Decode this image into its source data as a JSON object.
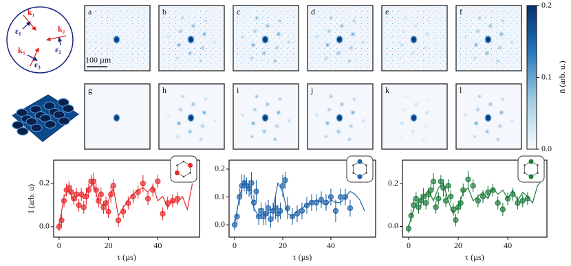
{
  "diagram": {
    "labels": [
      "k₁",
      "ε₁",
      "k₂",
      "ε₂",
      "k₃",
      "ε₃"
    ]
  },
  "panels": {
    "labels": [
      "a",
      "b",
      "c",
      "d",
      "e",
      "f",
      "g",
      "h",
      "i",
      "j",
      "k",
      "l"
    ],
    "scale_bar": "100 µm"
  },
  "colorbar": {
    "label": "n̄ (arb. u.)",
    "lim": [
      0,
      0.2
    ],
    "ticks": [
      {
        "value": 0,
        "label": "0.0"
      },
      0.1,
      0.2
    ]
  },
  "chart_data": [
    {
      "type": "scatter",
      "xlabel": "τ (µs)",
      "ylabel": "I (arb. u)",
      "xlim": [
        -2.2,
        56.9
      ],
      "ylim": [
        -0.048,
        0.308
      ],
      "xticks": [
        0,
        20,
        40
      ],
      "yticks": [
        {
          "value": 0,
          "label": "0.0"
        },
        0.2
      ],
      "series": [
        {
          "type": "line",
          "color": "#e8282b",
          "x": [
            0,
            2,
            4,
            6,
            8,
            10,
            12,
            14,
            16,
            18,
            20,
            22,
            24,
            26,
            28,
            30,
            32,
            34,
            36,
            38,
            40,
            42,
            44,
            46,
            48,
            50,
            52,
            54
          ],
          "values": [
            0,
            0.14,
            0.17,
            0.12,
            0.15,
            0.13,
            0.18,
            0.2,
            0.11,
            0.1,
            0.12,
            0.18,
            0.05,
            0.09,
            0.12,
            0.15,
            0.17,
            0.18,
            0.16,
            0.19,
            0.12,
            0.14,
            0.09,
            0.12,
            0.11,
            0.14,
            0.08,
            0.2
          ]
        },
        {
          "type": "errorbar",
          "color": "#e8282b",
          "x": [
            0,
            1,
            2,
            3,
            4,
            5,
            6,
            7,
            8,
            9,
            10,
            11,
            12,
            13,
            14,
            15,
            16,
            17,
            18,
            19,
            20,
            21,
            22,
            24,
            26,
            28,
            30,
            32,
            34,
            36,
            38,
            40,
            42,
            44,
            46,
            48
          ],
          "values": [
            0,
            0.03,
            0.12,
            0.17,
            0.18,
            0.16,
            0.13,
            0.15,
            0.1,
            0.15,
            0.09,
            0.14,
            0.17,
            0.21,
            0.21,
            0.17,
            0.12,
            0.15,
            0.09,
            0.11,
            0.07,
            0.15,
            0.19,
            0.03,
            0.07,
            0.11,
            0.14,
            0.16,
            0.2,
            0.13,
            0.17,
            0.21,
            0.06,
            0.11,
            0.12,
            0.13
          ],
          "errors": [
            0.02,
            0.03,
            0.03,
            0.03,
            0.03,
            0.03,
            0.03,
            0.03,
            0.03,
            0.03,
            0.03,
            0.04,
            0.03,
            0.03,
            0.04,
            0.03,
            0.03,
            0.03,
            0.03,
            0.03,
            0.03,
            0.04,
            0.03,
            0.03,
            0.03,
            0.03,
            0.03,
            0.03,
            0.04,
            0.03,
            0.03,
            0.03,
            0.03,
            0.03,
            0.03,
            0.03
          ]
        }
      ]
    },
    {
      "type": "scatter",
      "xlabel": "τ (µs)",
      "xlim": [
        -2.3,
        58.6
      ],
      "ylim": [
        -0.044,
        0.232
      ],
      "xticks": [
        0,
        20,
        40
      ],
      "yticks": [
        {
          "value": 0,
          "label": "0.0"
        },
        0.1,
        0.2
      ],
      "series": [
        {
          "type": "line",
          "color": "#1f63a8",
          "x": [
            0,
            2,
            4,
            6,
            8,
            10,
            12,
            14,
            16,
            18,
            20,
            22,
            24,
            26,
            28,
            30,
            32,
            34,
            36,
            38,
            40,
            42,
            44,
            46,
            48,
            50,
            52,
            54
          ],
          "values": [
            0,
            0.1,
            0.16,
            0.14,
            0.06,
            0.03,
            0.04,
            0.04,
            0.06,
            0.15,
            0.12,
            0.04,
            0.03,
            0.05,
            0.06,
            0.07,
            0.08,
            0.09,
            0.08,
            0.07,
            0.09,
            0.08,
            0.08,
            0.1,
            0.12,
            0.11,
            0.09,
            0.05
          ]
        },
        {
          "type": "errorbar",
          "color": "#1f63a8",
          "x": [
            0,
            1,
            2,
            3,
            4,
            5,
            6,
            7,
            8,
            9,
            10,
            11,
            12,
            13,
            14,
            15,
            16,
            17,
            18,
            19,
            20,
            21,
            22,
            24,
            26,
            28,
            30,
            32,
            34,
            36,
            38,
            40,
            42,
            44,
            46,
            48
          ],
          "values": [
            0,
            0.03,
            0.1,
            0.14,
            0.15,
            0.14,
            0.13,
            0.15,
            0.08,
            0.12,
            0.03,
            0.05,
            0.03,
            0.04,
            0.06,
            0.02,
            0.05,
            0.06,
            0.04,
            0.05,
            0.14,
            0.16,
            0.06,
            0.03,
            0.04,
            0.05,
            0.07,
            0.08,
            0.08,
            0.09,
            0.08,
            0.1,
            0.05,
            0.1,
            0.1,
            0.06
          ],
          "errors": [
            0.02,
            0.03,
            0.03,
            0.04,
            0.03,
            0.03,
            0.03,
            0.04,
            0.03,
            0.04,
            0.03,
            0.03,
            0.03,
            0.04,
            0.03,
            0.03,
            0.03,
            0.04,
            0.03,
            0.03,
            0.04,
            0.03,
            0.04,
            0.03,
            0.03,
            0.03,
            0.03,
            0.03,
            0.03,
            0.03,
            0.03,
            0.03,
            0.04,
            0.03,
            0.03,
            0.03
          ]
        }
      ]
    },
    {
      "type": "scatter",
      "xlabel": "τ (µs)",
      "xlim": [
        -2.5,
        55.8
      ],
      "ylim": [
        -0.05,
        0.31
      ],
      "xticks": [
        0,
        20,
        40
      ],
      "yticks": [
        {
          "value": 0,
          "label": "0.0"
        },
        0.2
      ],
      "series": [
        {
          "type": "line",
          "color": "#1b7a3a",
          "x": [
            0,
            2,
            4,
            6,
            8,
            10,
            12,
            14,
            16,
            18,
            20,
            22,
            24,
            26,
            28,
            30,
            32,
            34,
            36,
            38,
            40,
            42,
            44,
            46,
            48,
            50,
            52,
            54
          ],
          "values": [
            0,
            0.08,
            0.12,
            0.14,
            0.17,
            0.12,
            0.18,
            0.2,
            0.12,
            0.06,
            0.09,
            0.16,
            0.18,
            0.12,
            0.14,
            0.16,
            0.13,
            0.18,
            0.15,
            0.17,
            0.13,
            0.17,
            0.12,
            0.16,
            0.14,
            0.11,
            0.19,
            0.22
          ]
        },
        {
          "type": "errorbar",
          "color": "#1b7a3a",
          "x": [
            0,
            1,
            2,
            3,
            4,
            5,
            6,
            7,
            8,
            9,
            10,
            11,
            12,
            13,
            14,
            15,
            16,
            17,
            18,
            19,
            20,
            21,
            22,
            24,
            26,
            28,
            30,
            32,
            34,
            36,
            38,
            40,
            42,
            44,
            46,
            48
          ],
          "values": [
            -0.01,
            0.05,
            0.1,
            0.13,
            0.09,
            0.12,
            0.14,
            0.11,
            0.15,
            0.17,
            0.21,
            0.09,
            0.13,
            0.21,
            0.18,
            0.12,
            0.19,
            0.14,
            0.08,
            0.03,
            0.09,
            0.11,
            0.17,
            0.22,
            0.19,
            0.12,
            0.14,
            0.16,
            0.17,
            0.11,
            0.08,
            0.13,
            0.15,
            0.11,
            0.12,
            0.13
          ],
          "errors": [
            0.02,
            0.03,
            0.03,
            0.03,
            0.03,
            0.03,
            0.04,
            0.03,
            0.03,
            0.03,
            0.04,
            0.03,
            0.03,
            0.03,
            0.04,
            0.03,
            0.03,
            0.03,
            0.03,
            0.03,
            0.03,
            0.03,
            0.03,
            0.04,
            0.03,
            0.03,
            0.03,
            0.03,
            0.03,
            0.03,
            0.03,
            0.03,
            0.03,
            0.03,
            0.03,
            0.03
          ]
        }
      ]
    }
  ]
}
